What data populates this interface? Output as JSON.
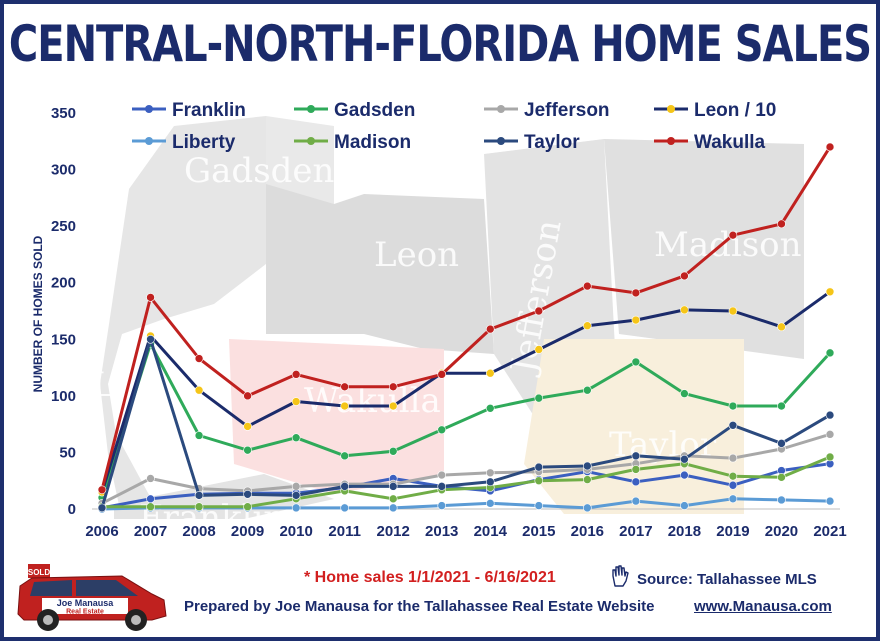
{
  "chart_data": {
    "type": "line",
    "title": "CENTRAL-NORTH-FLORIDA HOME SALES",
    "ylabel": "NUMBER OF HOMES SOLD",
    "xlabel": "",
    "ylim": [
      0,
      350
    ],
    "yticks": [
      0,
      50,
      100,
      150,
      200,
      250,
      300,
      350
    ],
    "x": [
      "2006",
      "2007",
      "2008",
      "2009",
      "2010",
      "2011",
      "2012",
      "2013",
      "2014",
      "2015",
      "2016",
      "2017",
      "2018",
      "2019",
      "2020",
      "2021"
    ],
    "legend_position": "top",
    "grid": false,
    "series": [
      {
        "name": "Franklin",
        "color": "#3b5fc0",
        "values": [
          1,
          9,
          13,
          14,
          14,
          19,
          27,
          20,
          16,
          26,
          33,
          24,
          30,
          21,
          34,
          40
        ]
      },
      {
        "name": "Gadsden",
        "color": "#2faa5a",
        "values": [
          10,
          146,
          65,
          52,
          63,
          47,
          51,
          70,
          89,
          98,
          105,
          130,
          102,
          91,
          91,
          138
        ]
      },
      {
        "name": "Jefferson",
        "color": "#a8a8a8",
        "values": [
          5,
          27,
          18,
          16,
          20,
          22,
          22,
          30,
          32,
          33,
          35,
          40,
          47,
          45,
          53,
          66
        ]
      },
      {
        "name": "Leon / 10",
        "color": "#1b2b6b",
        "marker_color": "#f5c518",
        "values": [
          15,
          153,
          105,
          73,
          95,
          91,
          91,
          120,
          120,
          141,
          162,
          167,
          176,
          175,
          161,
          192
        ]
      },
      {
        "name": "Liberty",
        "color": "#5b9bd5",
        "values": [
          0,
          1,
          1,
          1,
          1,
          1,
          1,
          3,
          5,
          3,
          1,
          7,
          3,
          9,
          8,
          7
        ]
      },
      {
        "name": "Madison",
        "color": "#70ad47",
        "values": [
          2,
          2,
          2,
          2,
          9,
          16,
          9,
          17,
          19,
          25,
          26,
          35,
          40,
          29,
          28,
          46
        ]
      },
      {
        "name": "Taylor",
        "color": "#2b4a7e",
        "values": [
          1,
          150,
          12,
          13,
          12,
          20,
          20,
          20,
          24,
          37,
          38,
          47,
          44,
          74,
          58,
          83
        ]
      },
      {
        "name": "Wakulla",
        "color": "#c0211f",
        "values": [
          17,
          187,
          133,
          100,
          119,
          108,
          108,
          119,
          159,
          175,
          197,
          191,
          206,
          242,
          252,
          320
        ]
      }
    ]
  },
  "map_labels": [
    "Gadsden",
    "Leon",
    "Jefferson",
    "Madison",
    "Liberty",
    "Wakulla",
    "Taylor",
    "Franklin"
  ],
  "footer": {
    "note": "* Home sales 1/1/2021 - 6/16/2021",
    "source": "Source: Tallahassee MLS",
    "prepared": "Prepared by Joe Manausa for the Tallahassee Real Estate Website",
    "website": "www.Manausa.com"
  },
  "car": {
    "sign": "SOLD",
    "brand_top": "Joe Manausa",
    "brand_bottom": "Real Estate"
  }
}
